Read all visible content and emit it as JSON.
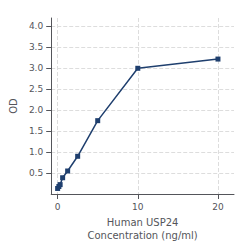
{
  "chart_data": {
    "type": "line",
    "x": [
      0,
      0.156,
      0.313,
      0.625,
      1.25,
      2.5,
      5,
      10,
      20
    ],
    "values": [
      0.132,
      0.179,
      0.224,
      0.388,
      0.549,
      0.9,
      1.75,
      3.0,
      3.22
    ],
    "color": "#1F3F6E",
    "marker": "square",
    "xlabel": "Human USP24\nConcentration (ng/ml)",
    "ylabel": "OD",
    "xlim": [
      -0.8,
      22
    ],
    "xticks": [
      0,
      10,
      20
    ],
    "ylim": [
      0,
      4.2
    ],
    "yticks": [
      0.5,
      {
        "value": 1.0,
        "label": "1.0"
      },
      1.5,
      {
        "value": 2.0,
        "label": "2.0"
      },
      2.5,
      {
        "value": 3.0,
        "label": "3.0"
      },
      3.5,
      {
        "value": 4.0,
        "label": "4.0"
      }
    ],
    "grid": true
  }
}
